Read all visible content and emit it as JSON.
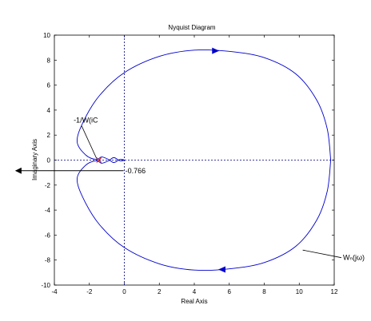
{
  "chart_data": {
    "type": "line",
    "title": "Nyquist Diagram",
    "xlabel": "Real Axis",
    "ylabel": "Imaginary Axis",
    "xlim": [
      -4,
      12
    ],
    "ylim": [
      -10,
      10
    ],
    "xticks": [
      -4,
      -2,
      0,
      2,
      4,
      6,
      8,
      10,
      12
    ],
    "yticks": [
      -10,
      -8,
      -6,
      -4,
      -2,
      0,
      2,
      4,
      6,
      8,
      10
    ],
    "xtick_labels": [
      "-4",
      "-2",
      "0",
      "2",
      "4",
      "6",
      "8",
      "10",
      "12"
    ],
    "ytick_labels": [
      "-10",
      "-8",
      "-6",
      "-4",
      "-2",
      "0",
      "2",
      "4",
      "6",
      "8",
      "10"
    ],
    "grid": false,
    "reference_lines": {
      "x": 0,
      "y": 0
    },
    "curve_color": "#0000cc",
    "series": [
      {
        "points": [
          [
            11.8,
            0.0
          ],
          [
            11.6,
            2.5
          ],
          [
            11.0,
            4.8
          ],
          [
            9.8,
            6.9
          ],
          [
            8.0,
            8.2
          ],
          [
            6.0,
            8.7
          ],
          [
            4.0,
            8.8
          ],
          [
            2.0,
            8.3
          ],
          [
            0.0,
            7.0
          ],
          [
            -1.4,
            5.2
          ],
          [
            -2.3,
            3.2
          ],
          [
            -2.7,
            1.5
          ],
          [
            -2.2,
            0.4
          ],
          [
            -1.6,
            0.05
          ],
          [
            -1.3,
            0.25
          ],
          [
            -0.9,
            0.05
          ],
          [
            -0.6,
            -0.2
          ],
          [
            -0.25,
            0.05
          ],
          [
            0.0,
            0.0
          ],
          [
            -0.25,
            -0.05
          ],
          [
            -0.6,
            0.2
          ],
          [
            -0.9,
            -0.05
          ],
          [
            -1.3,
            -0.25
          ],
          [
            -1.6,
            -0.05
          ],
          [
            -2.2,
            -0.4
          ],
          [
            -2.7,
            -1.5
          ],
          [
            -2.3,
            -3.2
          ],
          [
            -1.4,
            -5.2
          ],
          [
            0.0,
            -7.0
          ],
          [
            2.0,
            -8.3
          ],
          [
            4.0,
            -8.8
          ],
          [
            6.0,
            -8.7
          ],
          [
            8.0,
            -8.2
          ],
          [
            9.8,
            -6.9
          ],
          [
            11.0,
            -4.8
          ],
          [
            11.6,
            -2.5
          ],
          [
            11.8,
            0.0
          ]
        ]
      }
    ],
    "direction_arrows": [
      {
        "x": 5.2,
        "y": 8.75,
        "dx": 1,
        "dy": 0
      },
      {
        "x": 5.6,
        "y": -8.75,
        "dx": -1,
        "dy": 0
      }
    ],
    "marker": {
      "x": -1.45,
      "y": 0.0,
      "color": "#cc0000"
    },
    "annotations": [
      {
        "text": "-1/W(iC",
        "x": -2.9,
        "y": 3.0,
        "point_to": [
          -1.45,
          0.0
        ]
      },
      {
        "text": "-0.766",
        "x": 0.05,
        "y": -0.85,
        "arrow_to": [
          -6.2,
          -0.85
        ]
      },
      {
        "text": "Wₙ(jω)",
        "x": 12.5,
        "y": -8.0,
        "point_to": [
          10.2,
          -7.2
        ]
      }
    ]
  }
}
